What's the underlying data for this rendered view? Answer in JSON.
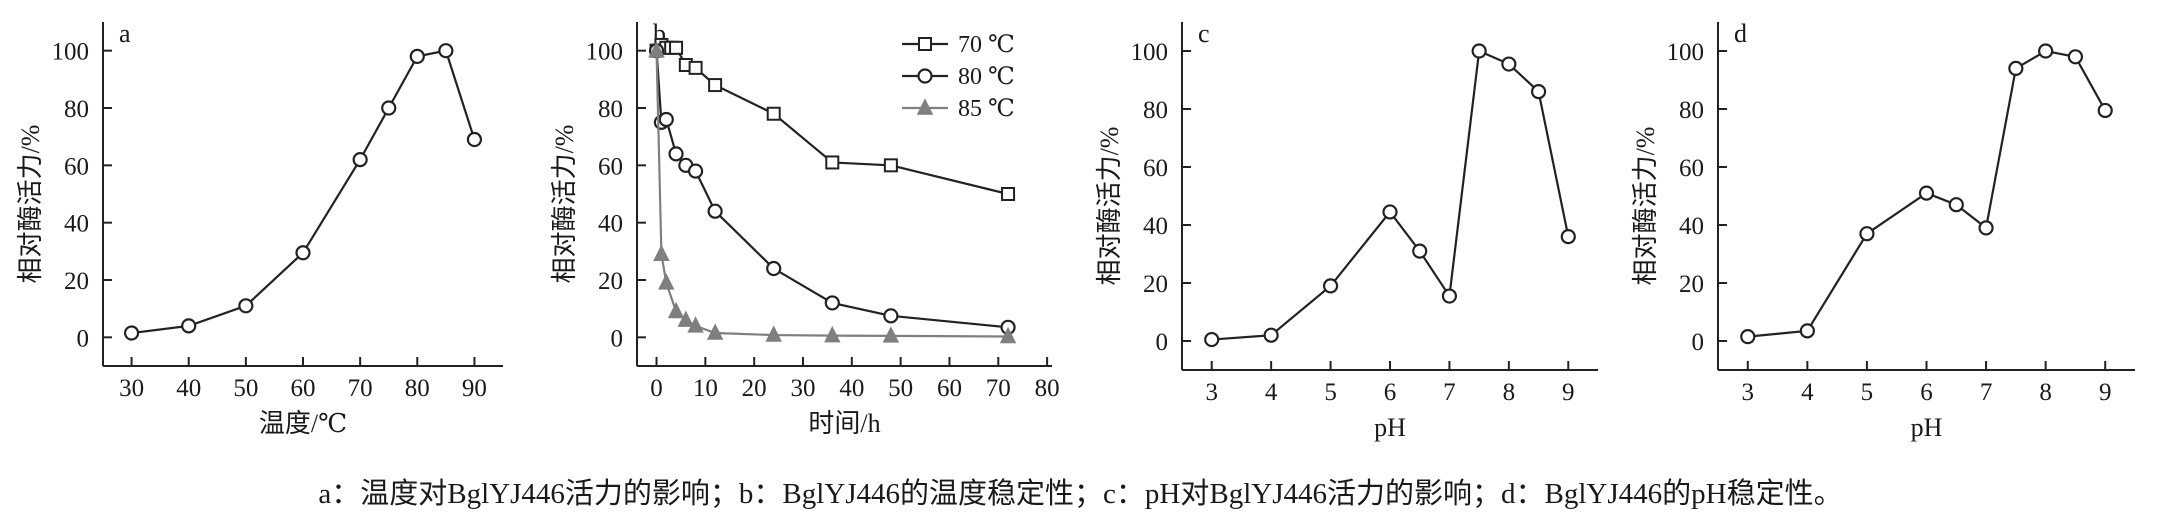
{
  "chart_data": [
    {
      "type": "line",
      "panel_label": "a",
      "xlabel": "温度/℃",
      "ylabel": "相对酶活力/%",
      "xlim": [
        25,
        95
      ],
      "ylim": [
        -10,
        110
      ],
      "xticks": [
        30,
        40,
        50,
        60,
        70,
        80,
        90
      ],
      "yticks": [
        0,
        20,
        40,
        60,
        80,
        100
      ],
      "grid": false,
      "series": [
        {
          "x": [
            30,
            40,
            50,
            60,
            70,
            75,
            80,
            85,
            90
          ],
          "y": [
            1.5,
            4,
            11,
            29.5,
            62,
            80,
            98,
            100,
            69
          ],
          "marker": "circle",
          "color": "#222222"
        }
      ]
    },
    {
      "type": "line",
      "panel_label": "b",
      "xlabel": "时间/h",
      "ylabel": "相对酶活力/%",
      "xlim": [
        -4,
        81
      ],
      "ylim": [
        -10,
        110
      ],
      "xticks": [
        0,
        10,
        20,
        30,
        40,
        50,
        60,
        70,
        80
      ],
      "yticks": [
        0,
        20,
        40,
        60,
        80,
        100
      ],
      "grid": false,
      "legend_position": "top-right",
      "series": [
        {
          "name": "70 ℃",
          "marker": "square",
          "color": "#222222",
          "x": [
            0,
            1,
            2,
            3,
            4,
            6,
            8,
            12,
            24,
            36,
            48,
            72
          ],
          "y": [
            100,
            102,
            101,
            101,
            101,
            95,
            94,
            88,
            78,
            61,
            60,
            50
          ]
        },
        {
          "name": "80 ℃",
          "marker": "circle",
          "color": "#222222",
          "x": [
            0,
            1,
            2,
            4,
            6,
            8,
            12,
            24,
            36,
            48,
            72
          ],
          "y": [
            100,
            75,
            76,
            64,
            60,
            58,
            44,
            24,
            12,
            7.5,
            3.5
          ]
        },
        {
          "name": "85 ℃",
          "marker": "triangle",
          "color": "#7f7f7f",
          "x": [
            0,
            1,
            2,
            4,
            6,
            8,
            12,
            24,
            36,
            48,
            72
          ],
          "y": [
            100,
            29,
            19,
            9,
            6,
            4,
            1.5,
            0.8,
            0.6,
            0.5,
            0.3
          ]
        }
      ]
    },
    {
      "type": "line",
      "panel_label": "c",
      "xlabel": "pH",
      "ylabel": "相对酶活力/%",
      "xlim": [
        2.5,
        9.5
      ],
      "ylim": [
        -10,
        110
      ],
      "xticks": [
        3,
        4,
        5,
        6,
        7,
        8,
        9
      ],
      "yticks": [
        0,
        20,
        40,
        60,
        80,
        100
      ],
      "grid": false,
      "series": [
        {
          "x": [
            3,
            4,
            5,
            6,
            6.5,
            7,
            7.5,
            8,
            8.5,
            9
          ],
          "y": [
            0.5,
            2,
            19,
            44.5,
            31,
            15.5,
            100,
            95.5,
            86,
            36
          ],
          "marker": "circle",
          "color": "#222222"
        }
      ]
    },
    {
      "type": "line",
      "panel_label": "d",
      "xlabel": "pH",
      "ylabel": "相对酶活力/%",
      "xlim": [
        2.5,
        9.5
      ],
      "ylim": [
        -10,
        110
      ],
      "xticks": [
        3,
        4,
        5,
        6,
        7,
        8,
        9
      ],
      "yticks": [
        0,
        20,
        40,
        60,
        80,
        100
      ],
      "grid": false,
      "series": [
        {
          "x": [
            3,
            4,
            5,
            6,
            6.5,
            7,
            7.5,
            8,
            8.5,
            9
          ],
          "y": [
            1.5,
            3.5,
            37,
            51,
            47,
            39,
            94,
            100,
            98,
            79.5
          ],
          "marker": "circle",
          "color": "#222222"
        }
      ]
    }
  ],
  "caption": "a：温度对BglYJ446活力的影响；b：BglYJ446的温度稳定性；c：pH对BglYJ446活力的影响；d：BglYJ446的pH稳定性。"
}
